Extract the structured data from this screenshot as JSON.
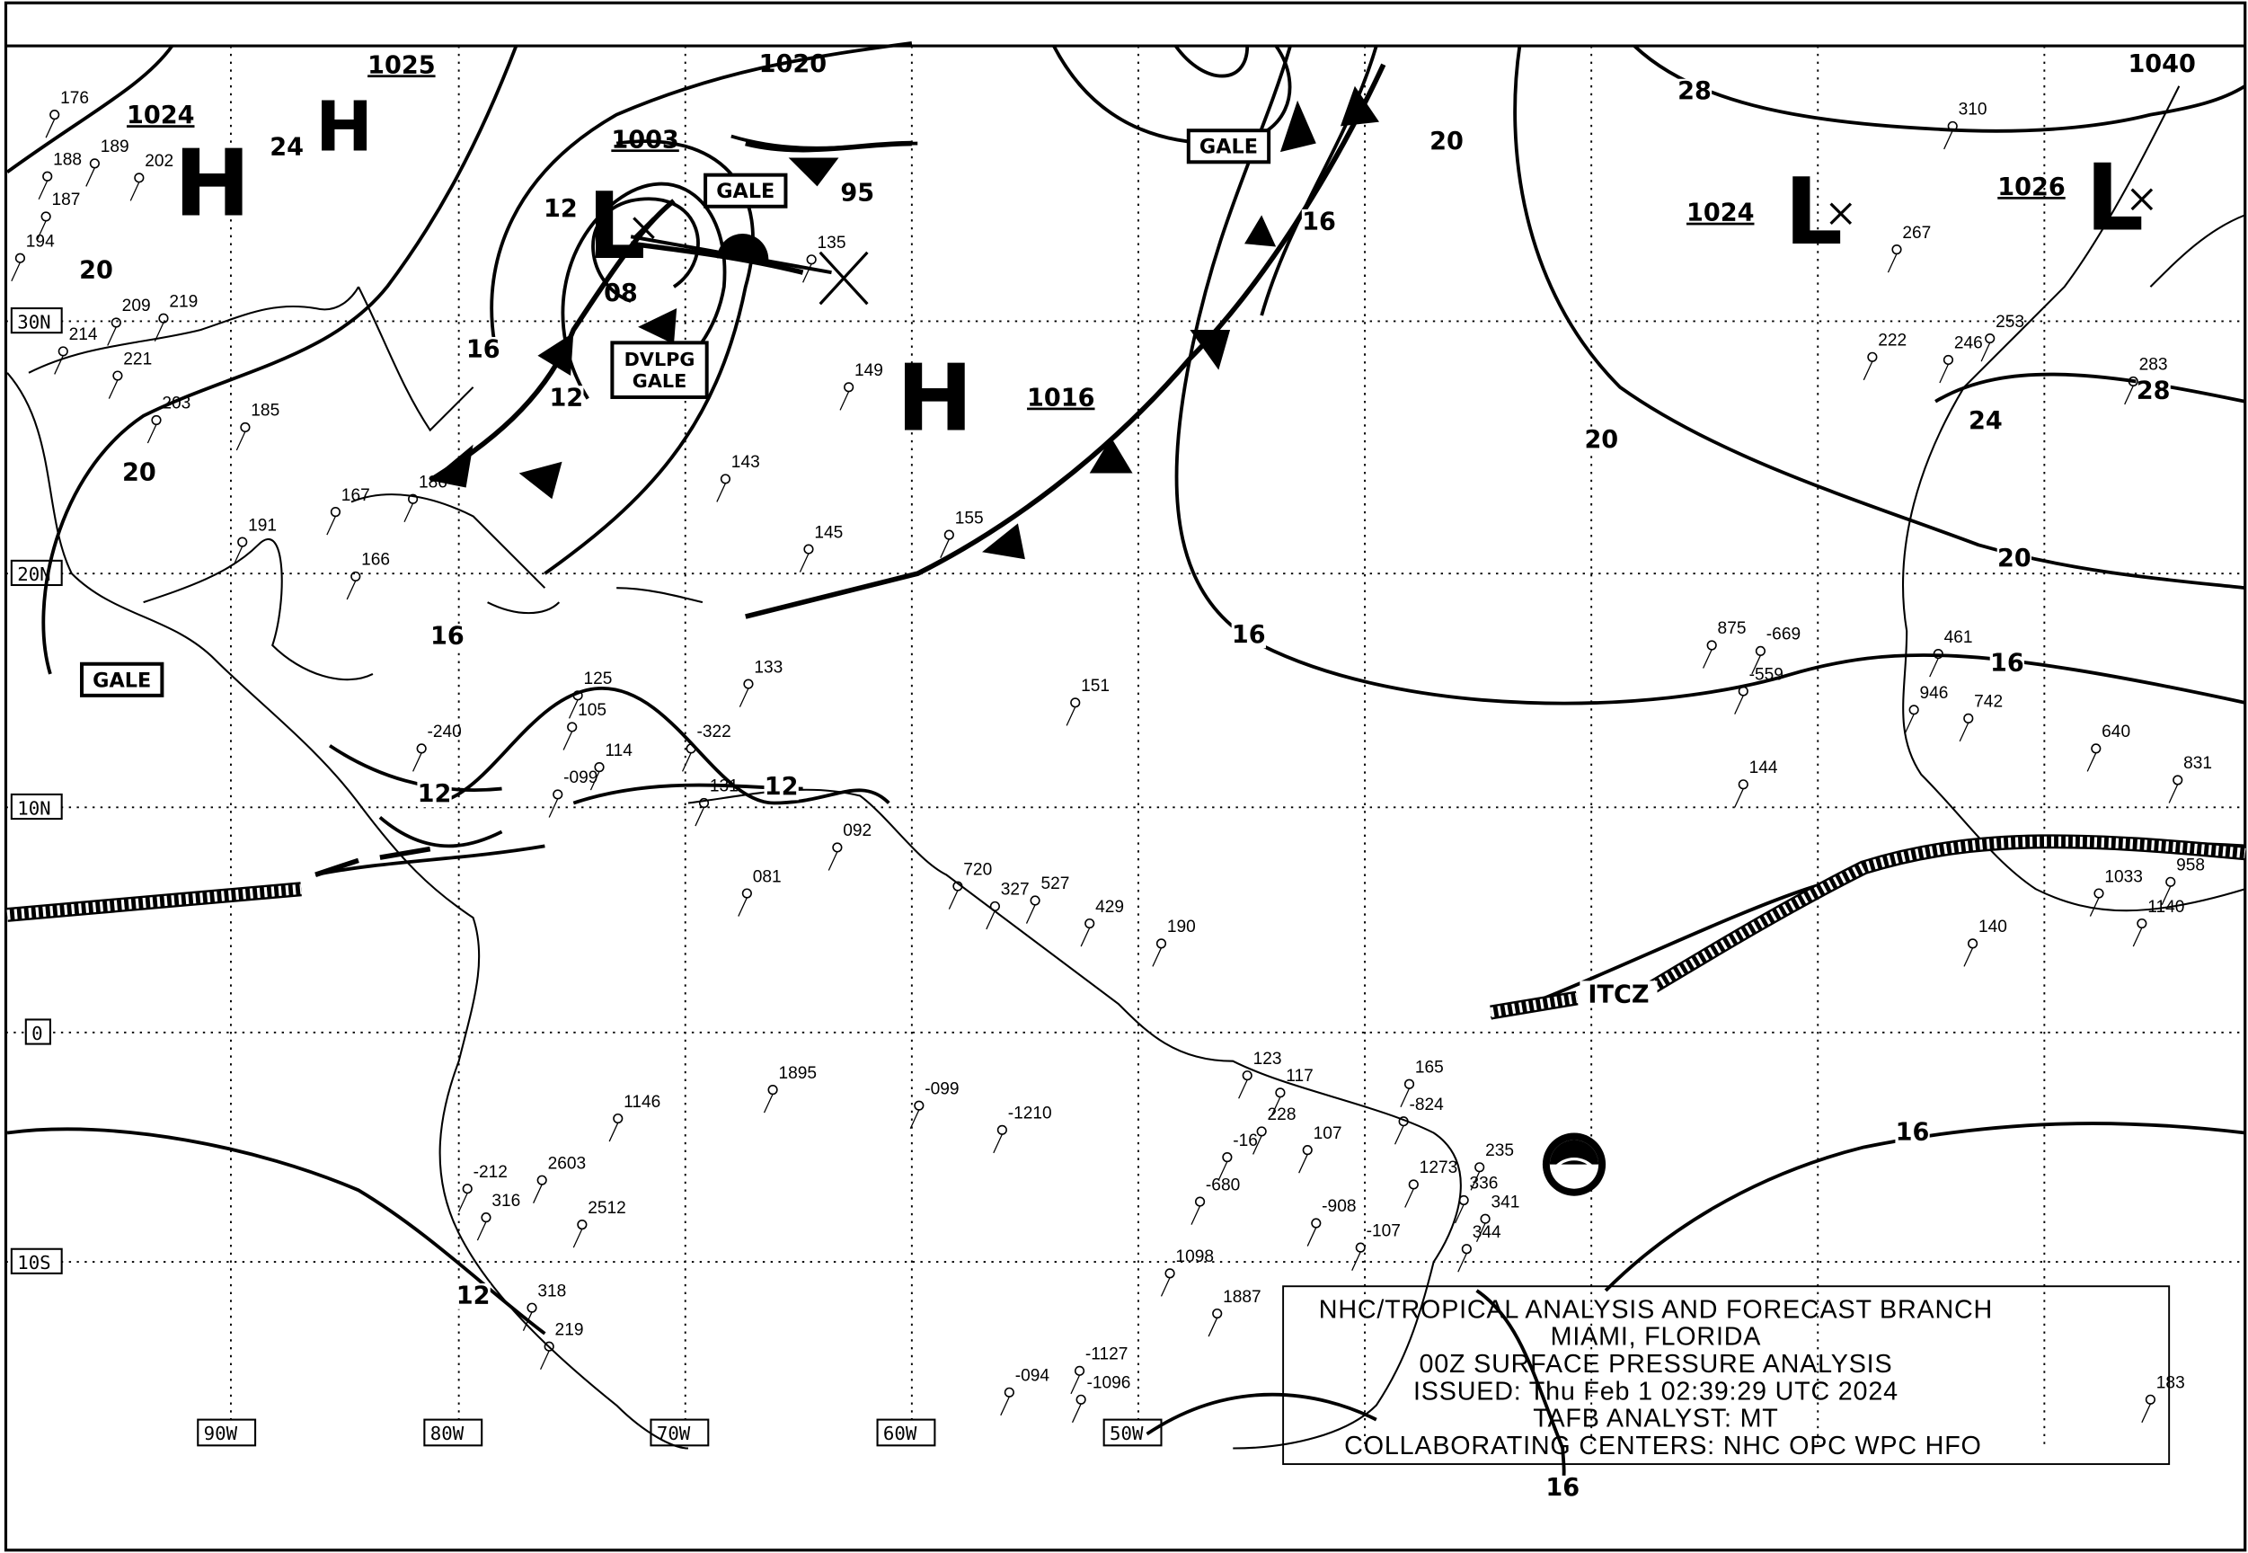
{
  "map": {
    "grid_labels": {
      "latitudes": [
        "30N",
        "20N",
        "10N",
        "0",
        "10S"
      ],
      "longitudes": [
        "90W",
        "80W",
        "70W",
        "60W",
        "50W"
      ]
    },
    "pressure_centers": [
      {
        "type": "H",
        "value": "1024"
      },
      {
        "type": "H",
        "value": "1025"
      },
      {
        "type": "L",
        "value": "1003"
      },
      {
        "type": "H",
        "value": "1016"
      },
      {
        "type": "L",
        "value": "1024"
      },
      {
        "type": "L",
        "value": "1026"
      }
    ],
    "other_pressure_values": [
      "1020",
      "1040",
      "95",
      "08",
      "24"
    ],
    "warnings": [
      "GALE",
      "GALE",
      "DVLPG GALE",
      "GALE"
    ],
    "isobar_labels": [
      "20",
      "20",
      "16",
      "12",
      "12",
      "16",
      "12",
      "12",
      "16",
      "20",
      "28",
      "16",
      "20",
      "20",
      "28",
      "24",
      "16",
      "16",
      "16",
      "12"
    ],
    "itcz_label": "ITCZ",
    "station_values": [
      "176",
      "188",
      "187",
      "194",
      "189",
      "202",
      "209",
      "219",
      "214",
      "221",
      "203",
      "185",
      "191",
      "166",
      "167",
      "186",
      "143",
      "145",
      "149",
      "155",
      "135",
      "133",
      "151",
      "125",
      "105",
      "-240",
      "-099",
      "114",
      "-322",
      "131",
      "092",
      "081",
      "720",
      "327",
      "527",
      "429",
      "190",
      "165",
      "-824",
      "235",
      "336",
      "341",
      "344",
      "1273",
      "107",
      "228",
      "123",
      "117",
      "-16",
      "-680",
      "-908",
      "-107",
      "1895",
      "-099",
      "-1210",
      "1146",
      "2603",
      "2512",
      "-212",
      "316",
      "318",
      "219",
      "-1127",
      "-1096",
      "-094",
      "1887",
      "1098",
      "310",
      "267",
      "222",
      "246",
      "253",
      "283",
      "875",
      "-669",
      "-559",
      "144",
      "461",
      "946",
      "742",
      "640",
      "831",
      "140",
      "1033",
      "1140",
      "958",
      "183"
    ]
  },
  "title_box": {
    "line1": "NHC/TROPICAL ANALYSIS AND FORECAST BRANCH",
    "line2": "MIAMI, FLORIDA",
    "line3": "00Z SURFACE PRESSURE ANALYSIS",
    "line4": "ISSUED: Thu Feb 1 02:39:29 UTC 2024",
    "line5": "TAFB ANALYST: MT",
    "line6": "COLLABORATING CENTERS: NHC OPC WPC HFO"
  },
  "icons": {
    "logo": "noaa-logo-icon"
  }
}
